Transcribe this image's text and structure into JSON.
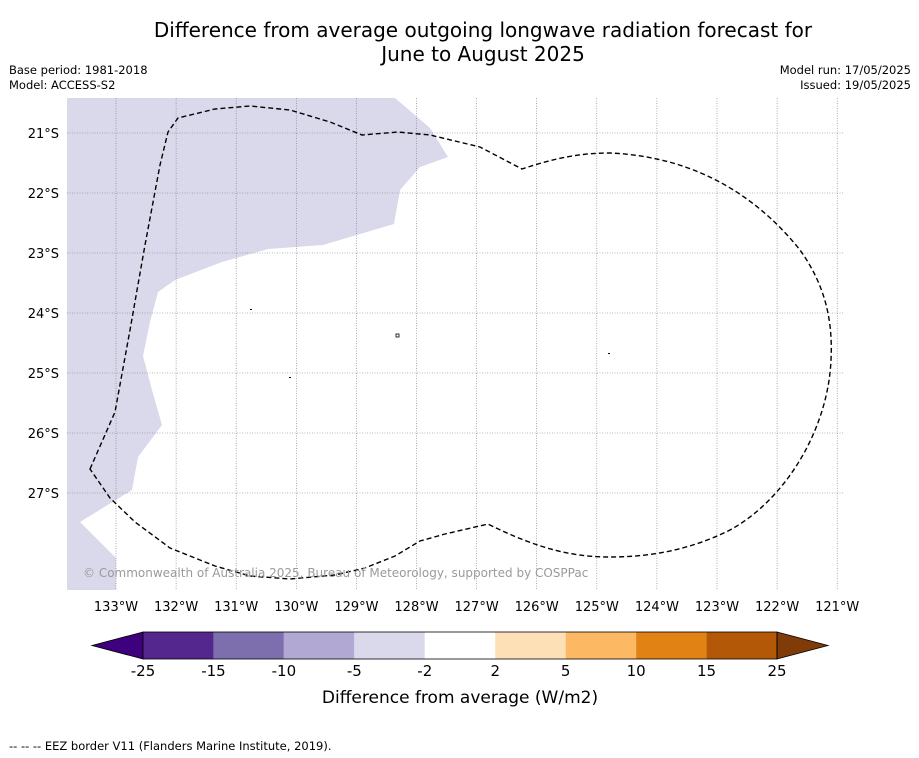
{
  "header": {
    "title_line1": "Difference from average outgoing longwave radiation forecast for",
    "title_line2": "June to August 2025",
    "base_period": "Base period: 1981-2018",
    "model": "Model: ACCESS-S2",
    "model_run": "Model run: 17/05/2025",
    "issued": "Issued: 19/05/2025"
  },
  "map": {
    "latitude_labels": [
      "21°S",
      "22°S",
      "23°S",
      "24°S",
      "25°S",
      "26°S",
      "27°S"
    ],
    "longitude_labels": [
      "133°W",
      "132°W",
      "131°W",
      "130°W",
      "129°W",
      "128°W",
      "127°W",
      "126°W",
      "125°W",
      "124°W",
      "123°W",
      "122°W",
      "121°W"
    ],
    "copyright": "© Commonwealth of Australia 2025, Bureau of Meteorology, supported by COSPPac",
    "land_color": "#d9d9eb",
    "eez_line_color": "#000000"
  },
  "colorbar": {
    "title": "Difference from average (W/m2)",
    "tick_labels": [
      "-25",
      "-15",
      "-10",
      "-5",
      "-2",
      "2",
      "5",
      "10",
      "15",
      "25"
    ],
    "colors": [
      "#3f007d",
      "#54278f",
      "#7d6fad",
      "#b1a9d3",
      "#d9d9eb",
      "#ffffff",
      "#fee0b6",
      "#fdb863",
      "#e08214",
      "#b35806",
      "#7f3b08"
    ]
  },
  "footer": {
    "legend_text": "--  --  -- EEZ border V11 (Flanders Marine Institute, 2019)."
  }
}
